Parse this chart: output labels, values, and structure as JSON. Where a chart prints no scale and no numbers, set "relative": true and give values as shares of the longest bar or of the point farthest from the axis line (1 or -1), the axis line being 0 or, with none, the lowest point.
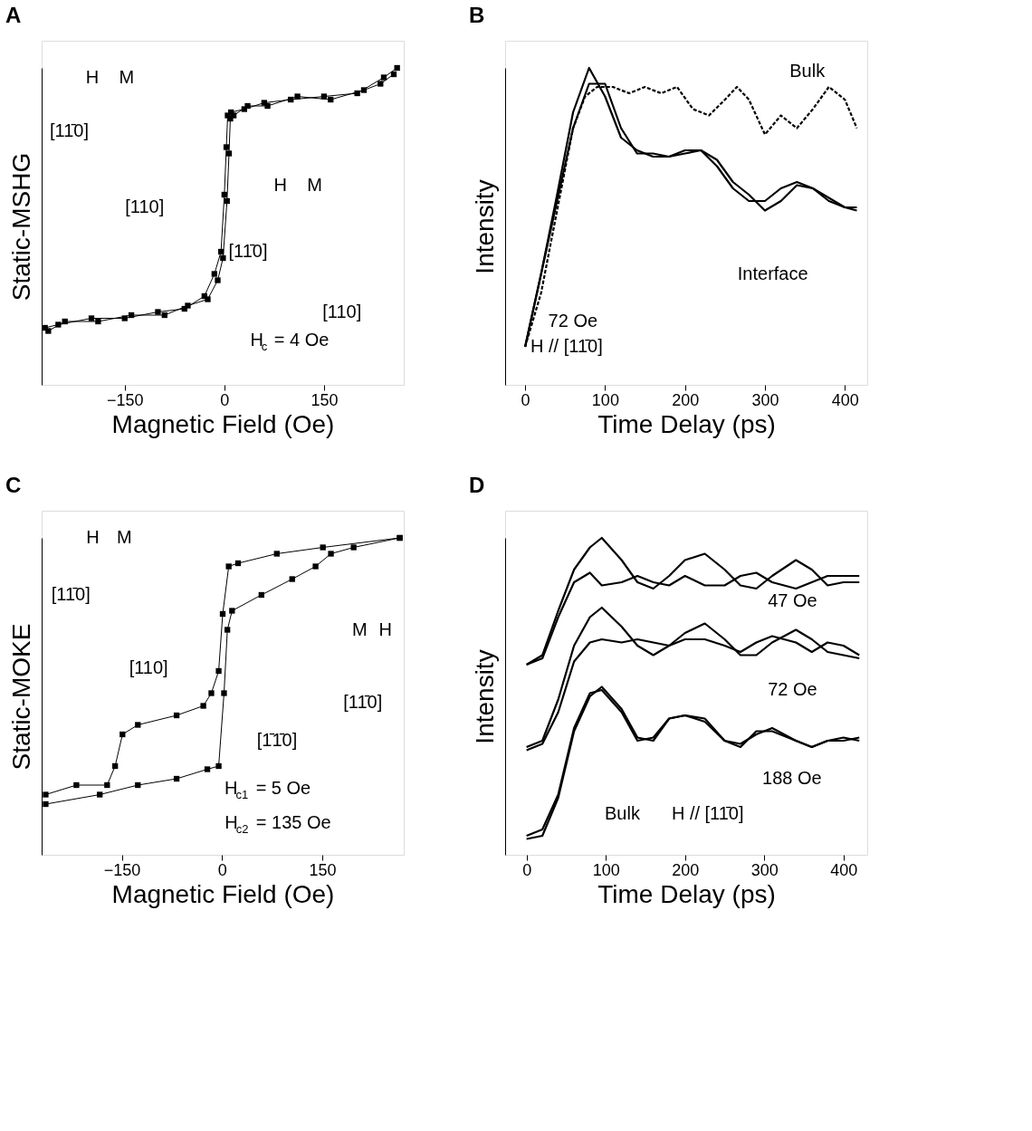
{
  "chart_data": [
    {
      "type": "line",
      "title": "A",
      "xlabel": "Magnetic Field (Oe)",
      "ylabel": "Static-MSHG",
      "relative": true,
      "tick_labels": "x",
      "grid": false,
      "marker": "square",
      "line_style": "solid",
      "xlim": [
        -275,
        270
      ],
      "xticks": [
        -150,
        0,
        150
      ],
      "series": [
        {
          "color": "#000000",
          "x": [
            -270,
            -250,
            -200,
            -150,
            -100,
            -60,
            -30,
            -15,
            -5,
            0,
            3,
            5,
            10,
            30,
            60,
            100,
            150,
            200,
            240,
            260
          ],
          "values": [
            0.18,
            0.19,
            0.21,
            0.21,
            0.23,
            0.24,
            0.28,
            0.35,
            0.42,
            0.6,
            0.75,
            0.85,
            0.86,
            0.87,
            0.89,
            0.9,
            0.91,
            0.92,
            0.97,
            1.0
          ]
        },
        {
          "color": "#000000",
          "x": [
            -265,
            -240,
            -190,
            -140,
            -90,
            -55,
            -25,
            -10,
            -2,
            4,
            7,
            9,
            14,
            35,
            65,
            110,
            160,
            210,
            235,
            255
          ],
          "values": [
            0.17,
            0.2,
            0.2,
            0.22,
            0.22,
            0.25,
            0.27,
            0.33,
            0.4,
            0.58,
            0.73,
            0.84,
            0.85,
            0.88,
            0.88,
            0.91,
            0.9,
            0.93,
            0.95,
            0.98
          ]
        }
      ],
      "annotations": [
        "H",
        "M",
        "[11̄0]",
        "[110]",
        "H",
        "M",
        "[11̄0]",
        "[110]",
        "H$_{c}$ = 4 Oe"
      ]
    },
    {
      "type": "line",
      "title": "B",
      "xlabel": "Time Delay (ps)",
      "ylabel": "Intensity",
      "relative": true,
      "tick_labels": "x",
      "grid": false,
      "xlim": [
        -25,
        428
      ],
      "xticks": [
        0,
        100,
        200,
        300,
        400
      ],
      "series": [
        {
          "color": "#000000",
          "line_style": "dashed",
          "x": [
            0,
            20,
            40,
            60,
            75,
            90,
            110,
            130,
            150,
            170,
            190,
            210,
            230,
            250,
            265,
            280,
            300,
            320,
            340,
            360,
            380,
            400,
            415
          ],
          "values": [
            0.12,
            0.29,
            0.55,
            0.81,
            0.91,
            0.94,
            0.94,
            0.92,
            0.94,
            0.92,
            0.94,
            0.87,
            0.85,
            0.9,
            0.94,
            0.9,
            0.79,
            0.85,
            0.81,
            0.87,
            0.94,
            0.9,
            0.81
          ]
        },
        {
          "color": "#000000",
          "line_style": "solid",
          "x": [
            0,
            20,
            40,
            60,
            80,
            100,
            120,
            140,
            160,
            180,
            200,
            220,
            240,
            260,
            280,
            300,
            320,
            340,
            360,
            380,
            400,
            415
          ],
          "values": [
            0.12,
            0.35,
            0.6,
            0.86,
            1.0,
            0.91,
            0.78,
            0.74,
            0.72,
            0.72,
            0.73,
            0.74,
            0.69,
            0.62,
            0.58,
            0.58,
            0.62,
            0.64,
            0.62,
            0.58,
            0.56,
            0.56
          ]
        },
        {
          "color": "#000000",
          "line_style": "solid",
          "x": [
            0,
            20,
            40,
            60,
            80,
            100,
            120,
            140,
            160,
            180,
            200,
            220,
            240,
            260,
            280,
            300,
            320,
            340,
            360,
            380,
            400,
            415
          ],
          "values": [
            0.12,
            0.35,
            0.58,
            0.81,
            0.95,
            0.95,
            0.81,
            0.73,
            0.73,
            0.72,
            0.74,
            0.74,
            0.71,
            0.64,
            0.6,
            0.55,
            0.58,
            0.63,
            0.62,
            0.59,
            0.56,
            0.55
          ]
        }
      ],
      "annotations": [
        "Bulk",
        "Interface",
        "72 Oe",
        "H // [11̄0]"
      ]
    },
    {
      "type": "line",
      "title": "C",
      "xlabel": "Magnetic Field (Oe)",
      "ylabel": "Static-MOKE",
      "relative": true,
      "tick_labels": "x",
      "grid": false,
      "marker": "square",
      "line_style": "solid",
      "xlim": [
        -270,
        272
      ],
      "xticks": [
        -150,
        0,
        150
      ],
      "series": [
        {
          "color": "#000000",
          "x": [
            266,
            151,
            82,
            24,
            10,
            1,
            -5,
            -16,
            -28,
            -68,
            -126,
            -149,
            -160,
            -172,
            -218,
            -264
          ],
          "values": [
            1.0,
            0.97,
            0.95,
            0.92,
            0.91,
            0.76,
            0.58,
            0.51,
            0.47,
            0.44,
            0.41,
            0.38,
            0.28,
            0.22,
            0.22,
            0.19
          ]
        },
        {
          "color": "#000000",
          "x": [
            -264,
            -183,
            -126,
            -68,
            -22,
            -5,
            3,
            8,
            15,
            59,
            105,
            140,
            163,
            197,
            266
          ],
          "values": [
            0.16,
            0.19,
            0.22,
            0.24,
            0.27,
            0.28,
            0.51,
            0.71,
            0.77,
            0.82,
            0.87,
            0.91,
            0.95,
            0.97,
            1.0
          ]
        }
      ],
      "annotations": [
        "H",
        "M",
        "[11̄0]",
        "[110]",
        "M",
        "H",
        "[11̄0]",
        "[1̄1̄0]",
        "H$_{c1}$ = 5 Oe",
        "H$_{c2}$ = 135 Oe"
      ]
    },
    {
      "type": "line",
      "title": "D",
      "xlabel": "Time Delay (ps)",
      "ylabel": "Intensity",
      "relative": true,
      "tick_labels": "x",
      "grid": false,
      "line_style": "solid",
      "xlim": [
        -27,
        430
      ],
      "xticks": [
        0,
        100,
        200,
        300,
        400
      ],
      "x": [
        0,
        20,
        40,
        60,
        80,
        95,
        120,
        140,
        160,
        180,
        200,
        225,
        250,
        270,
        290,
        310,
        340,
        360,
        380,
        400,
        420
      ],
      "series": [
        {
          "color": "#000000",
          "values": [
            0.6,
            0.63,
            0.77,
            0.9,
            0.97,
            1.0,
            0.93,
            0.86,
            0.84,
            0.88,
            0.93,
            0.95,
            0.9,
            0.85,
            0.84,
            0.88,
            0.93,
            0.9,
            0.85,
            0.86,
            0.86
          ]
        },
        {
          "color": "#000000",
          "values": [
            0.6,
            0.62,
            0.75,
            0.86,
            0.89,
            0.85,
            0.86,
            0.88,
            0.86,
            0.85,
            0.88,
            0.85,
            0.85,
            0.88,
            0.89,
            0.86,
            0.84,
            0.86,
            0.88,
            0.88,
            0.88
          ]
        },
        {
          "color": "#000000",
          "values": [
            0.34,
            0.36,
            0.49,
            0.66,
            0.75,
            0.78,
            0.72,
            0.66,
            0.63,
            0.66,
            0.7,
            0.73,
            0.68,
            0.63,
            0.63,
            0.67,
            0.71,
            0.68,
            0.64,
            0.63,
            0.62
          ]
        },
        {
          "color": "#000000",
          "values": [
            0.33,
            0.35,
            0.45,
            0.61,
            0.67,
            0.68,
            0.67,
            0.68,
            0.67,
            0.66,
            0.68,
            0.68,
            0.66,
            0.64,
            0.67,
            0.69,
            0.67,
            0.64,
            0.67,
            0.66,
            0.63
          ]
        },
        {
          "color": "#000000",
          "values": [
            0.05,
            0.06,
            0.18,
            0.39,
            0.5,
            0.53,
            0.46,
            0.37,
            0.36,
            0.43,
            0.44,
            0.43,
            0.36,
            0.35,
            0.38,
            0.4,
            0.36,
            0.34,
            0.36,
            0.37,
            0.36
          ]
        },
        {
          "color": "#000000",
          "values": [
            0.06,
            0.08,
            0.19,
            0.4,
            0.51,
            0.52,
            0.45,
            0.36,
            0.37,
            0.43,
            0.44,
            0.42,
            0.36,
            0.34,
            0.39,
            0.39,
            0.36,
            0.34,
            0.36,
            0.36,
            0.37
          ]
        }
      ],
      "annotations": [
        "47 Oe",
        "72 Oe",
        "188 Oe",
        "Bulk",
        "H // [11̄0]"
      ]
    }
  ]
}
